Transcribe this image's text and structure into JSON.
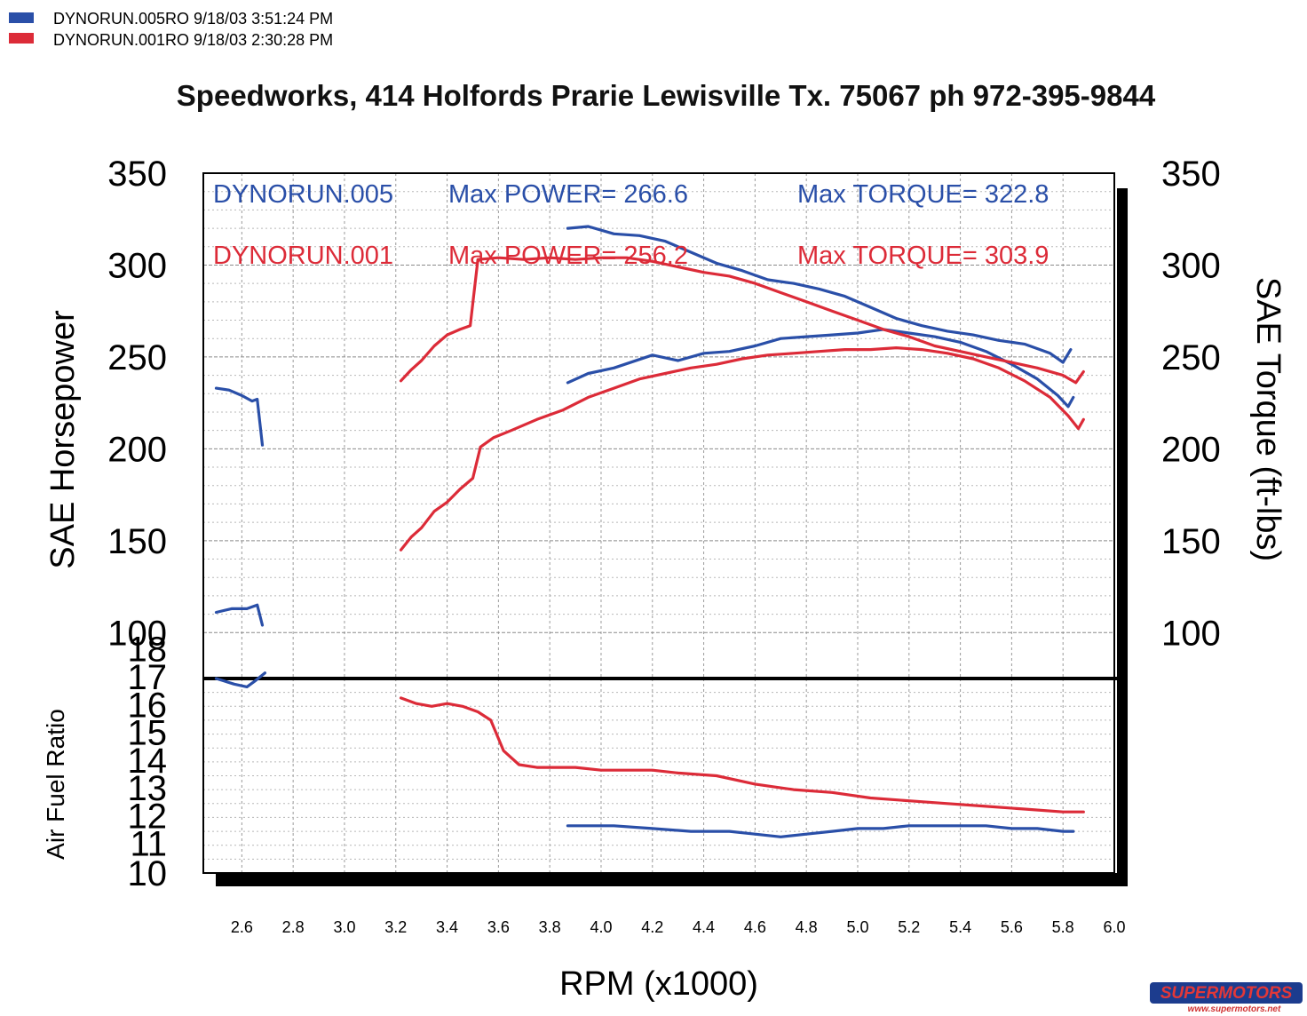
{
  "legend": [
    {
      "label": "DYNORUN.005RO  9/18/03 3:51:24 PM",
      "color": "#2a4fa8"
    },
    {
      "label": "DYNORUN.001RO  9/18/03 2:30:28 PM",
      "color": "#dc2b38"
    }
  ],
  "header": {
    "title": "Speedworks, 414 Holfords Prarie Lewisville Tx. 75067  ph 972-395-9844"
  },
  "annotations": {
    "run005_name": "DYNORUN.005",
    "run005_power": "Max POWER= 266.6",
    "run005_torque": "Max TORQUE= 322.8",
    "run001_name": "DYNORUN.001",
    "run001_power": "Max POWER= 256.2",
    "run001_torque": "Max TORQUE= 303.9"
  },
  "watermark": {
    "logo": "SUPERMOTORS",
    "url": "www.supermotors.net"
  },
  "chart_data": {
    "type": "line",
    "xlabel": "RPM (x1000)",
    "x_ticks": [
      "2.6",
      "2.8",
      "3.0",
      "3.2",
      "3.4",
      "3.6",
      "3.8",
      "4.0",
      "4.2",
      "4.4",
      "4.6",
      "4.8",
      "5.0",
      "5.2",
      "5.4",
      "5.6",
      "5.8",
      "6.0"
    ],
    "xlim": [
      2.45,
      6.0
    ],
    "main_panel": {
      "ylabel_left": "SAE Horsepower",
      "ylabel_right": "SAE Torque (ft-lbs)",
      "ylim": [
        75,
        350
      ],
      "y_ticks": [
        "350",
        "300",
        "250",
        "200",
        "150",
        "100"
      ],
      "series": [
        {
          "name": "DYNORUN.005 Power",
          "color": "#2a4fa8",
          "segments": [
            [
              [
                2.5,
                111
              ],
              [
                2.56,
                113
              ],
              [
                2.62,
                113
              ],
              [
                2.66,
                115
              ],
              [
                2.68,
                104
              ]
            ],
            [
              [
                3.87,
                236
              ],
              [
                3.95,
                241
              ],
              [
                4.05,
                244
              ],
              [
                4.2,
                251
              ],
              [
                4.3,
                248
              ],
              [
                4.4,
                252
              ],
              [
                4.5,
                253
              ],
              [
                4.6,
                256
              ],
              [
                4.7,
                260
              ],
              [
                4.8,
                261
              ],
              [
                4.9,
                262
              ],
              [
                5.0,
                263
              ],
              [
                5.1,
                265
              ],
              [
                5.2,
                263
              ],
              [
                5.3,
                261
              ],
              [
                5.4,
                258
              ],
              [
                5.5,
                253
              ],
              [
                5.6,
                246
              ],
              [
                5.7,
                238
              ],
              [
                5.78,
                229
              ],
              [
                5.82,
                223
              ],
              [
                5.84,
                228
              ]
            ]
          ]
        },
        {
          "name": "DYNORUN.005 Torque",
          "color": "#2a4fa8",
          "segments": [
            [
              [
                2.5,
                233
              ],
              [
                2.55,
                232
              ],
              [
                2.6,
                229
              ],
              [
                2.64,
                226
              ],
              [
                2.66,
                227
              ],
              [
                2.68,
                202
              ]
            ],
            [
              [
                3.87,
                320
              ],
              [
                3.95,
                321
              ],
              [
                4.05,
                317
              ],
              [
                4.15,
                316
              ],
              [
                4.25,
                313
              ],
              [
                4.35,
                307
              ],
              [
                4.45,
                301
              ],
              [
                4.55,
                297
              ],
              [
                4.65,
                292
              ],
              [
                4.75,
                290
              ],
              [
                4.85,
                287
              ],
              [
                4.95,
                283
              ],
              [
                5.05,
                277
              ],
              [
                5.15,
                271
              ],
              [
                5.25,
                267
              ],
              [
                5.35,
                264
              ],
              [
                5.45,
                262
              ],
              [
                5.55,
                259
              ],
              [
                5.65,
                257
              ],
              [
                5.75,
                252
              ],
              [
                5.8,
                247
              ],
              [
                5.83,
                254
              ]
            ]
          ]
        },
        {
          "name": "DYNORUN.001 Power",
          "color": "#dc2b38",
          "segments": [
            [
              [
                3.22,
                145
              ],
              [
                3.26,
                152
              ],
              [
                3.3,
                157
              ],
              [
                3.35,
                166
              ],
              [
                3.4,
                171
              ],
              [
                3.45,
                178
              ],
              [
                3.5,
                184
              ],
              [
                3.53,
                201
              ],
              [
                3.58,
                206
              ],
              [
                3.65,
                210
              ],
              [
                3.75,
                216
              ],
              [
                3.85,
                221
              ],
              [
                3.95,
                228
              ],
              [
                4.05,
                233
              ],
              [
                4.15,
                238
              ],
              [
                4.25,
                241
              ],
              [
                4.35,
                244
              ],
              [
                4.45,
                246
              ],
              [
                4.55,
                249
              ],
              [
                4.65,
                251
              ],
              [
                4.75,
                252
              ],
              [
                4.85,
                253
              ],
              [
                4.95,
                254
              ],
              [
                5.05,
                254
              ],
              [
                5.15,
                255
              ],
              [
                5.25,
                254
              ],
              [
                5.35,
                252
              ],
              [
                5.45,
                249
              ],
              [
                5.55,
                244
              ],
              [
                5.65,
                237
              ],
              [
                5.75,
                228
              ],
              [
                5.82,
                218
              ],
              [
                5.86,
                211
              ],
              [
                5.88,
                216
              ]
            ]
          ]
        },
        {
          "name": "DYNORUN.001 Torque",
          "color": "#dc2b38",
          "segments": [
            [
              [
                3.22,
                237
              ],
              [
                3.26,
                243
              ],
              [
                3.3,
                248
              ],
              [
                3.35,
                256
              ],
              [
                3.4,
                262
              ],
              [
                3.45,
                265
              ],
              [
                3.49,
                267
              ],
              [
                3.52,
                303
              ],
              [
                3.6,
                304
              ],
              [
                3.7,
                303
              ],
              [
                3.8,
                304
              ],
              [
                3.9,
                303
              ],
              [
                4.0,
                304
              ],
              [
                4.1,
                304
              ],
              [
                4.2,
                302
              ],
              [
                4.3,
                299
              ],
              [
                4.4,
                296
              ],
              [
                4.5,
                294
              ],
              [
                4.6,
                290
              ],
              [
                4.7,
                285
              ],
              [
                4.8,
                280
              ],
              [
                4.9,
                275
              ],
              [
                5.0,
                270
              ],
              [
                5.1,
                265
              ],
              [
                5.2,
                261
              ],
              [
                5.3,
                256
              ],
              [
                5.4,
                253
              ],
              [
                5.5,
                250
              ],
              [
                5.6,
                247
              ],
              [
                5.7,
                244
              ],
              [
                5.8,
                240
              ],
              [
                5.85,
                236
              ],
              [
                5.88,
                242
              ]
            ]
          ]
        }
      ]
    },
    "afr_panel": {
      "ylabel": "Air Fuel Ratio",
      "ylim": [
        10,
        17
      ],
      "y_ticks": [
        "10",
        "11",
        "12",
        "13",
        "14",
        "15",
        "16",
        "17",
        "18"
      ],
      "series": [
        {
          "name": "DYNORUN.005 AFR",
          "color": "#2a4fa8",
          "segments": [
            [
              [
                2.5,
                17.0
              ],
              [
                2.57,
                16.8
              ],
              [
                2.62,
                16.7
              ],
              [
                2.65,
                16.9
              ],
              [
                2.69,
                17.2
              ]
            ],
            [
              [
                3.87,
                11.7
              ],
              [
                3.95,
                11.7
              ],
              [
                4.05,
                11.7
              ],
              [
                4.2,
                11.6
              ],
              [
                4.35,
                11.5
              ],
              [
                4.5,
                11.5
              ],
              [
                4.6,
                11.4
              ],
              [
                4.7,
                11.3
              ],
              [
                4.8,
                11.4
              ],
              [
                4.9,
                11.5
              ],
              [
                5.0,
                11.6
              ],
              [
                5.1,
                11.6
              ],
              [
                5.2,
                11.7
              ],
              [
                5.3,
                11.7
              ],
              [
                5.4,
                11.7
              ],
              [
                5.5,
                11.7
              ],
              [
                5.6,
                11.6
              ],
              [
                5.7,
                11.6
              ],
              [
                5.8,
                11.5
              ],
              [
                5.84,
                11.5
              ]
            ]
          ]
        },
        {
          "name": "DYNORUN.001 AFR",
          "color": "#dc2b38",
          "segments": [
            [
              [
                3.22,
                16.3
              ],
              [
                3.28,
                16.1
              ],
              [
                3.34,
                16.0
              ],
              [
                3.4,
                16.1
              ],
              [
                3.46,
                16.0
              ],
              [
                3.52,
                15.8
              ],
              [
                3.57,
                15.5
              ],
              [
                3.62,
                14.4
              ],
              [
                3.68,
                13.9
              ],
              [
                3.75,
                13.8
              ],
              [
                3.9,
                13.8
              ],
              [
                4.0,
                13.7
              ],
              [
                4.1,
                13.7
              ],
              [
                4.2,
                13.7
              ],
              [
                4.3,
                13.6
              ],
              [
                4.45,
                13.5
              ],
              [
                4.6,
                13.2
              ],
              [
                4.75,
                13.0
              ],
              [
                4.9,
                12.9
              ],
              [
                5.05,
                12.7
              ],
              [
                5.2,
                12.6
              ],
              [
                5.35,
                12.5
              ],
              [
                5.5,
                12.4
              ],
              [
                5.65,
                12.3
              ],
              [
                5.8,
                12.2
              ],
              [
                5.88,
                12.2
              ]
            ]
          ]
        }
      ]
    }
  }
}
